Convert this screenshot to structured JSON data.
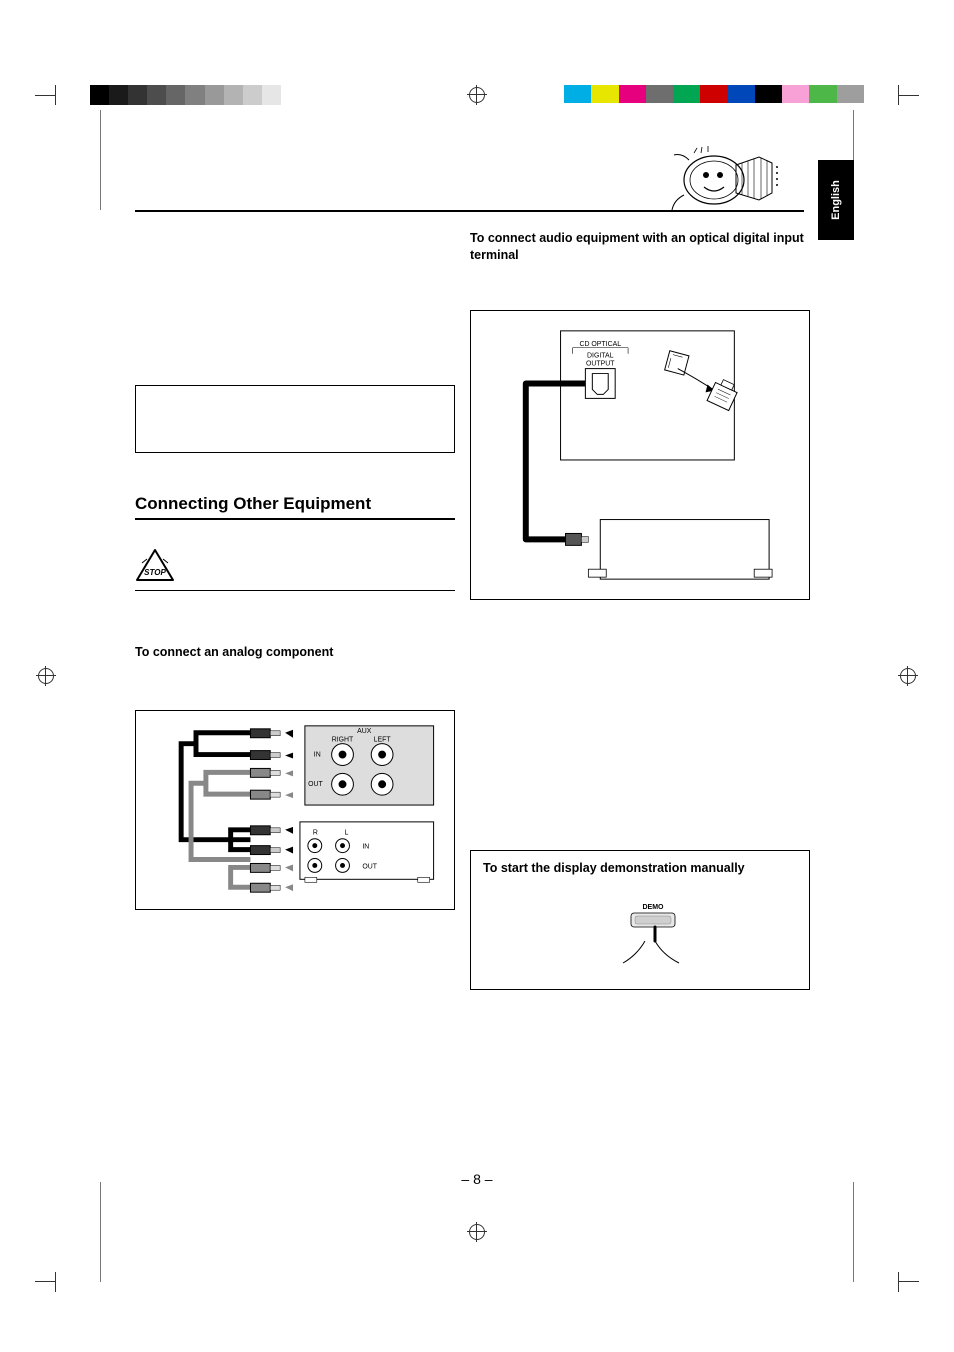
{
  "language_tab": "English",
  "page_number": "– 8 –",
  "gray_bar_colors": [
    "#000000",
    "#1a1a1a",
    "#333333",
    "#4d4d4d",
    "#666666",
    "#808080",
    "#999999",
    "#b3b3b3",
    "#cccccc",
    "#e6e6e6",
    "#ffffff"
  ],
  "color_bar_colors": [
    "#00aee6",
    "#e6e600",
    "#e6007e",
    "#6e6e6e",
    "#00a651",
    "#cf0000",
    "#0047ba",
    "#000000",
    "#f7a1d6",
    "#4db848",
    "#9e9e9e"
  ],
  "right_col": {
    "heading": "To connect audio equipment with an optical digital input terminal",
    "optical_labels": {
      "cd_optical": "CD OPTICAL",
      "digital": "DIGITAL",
      "output": "OUTPUT"
    }
  },
  "left_col": {
    "section_title": "Connecting Other Equipment",
    "analog_heading": "To connect an analog component",
    "analog_labels": {
      "aux": "AUX",
      "right": "RIGHT",
      "left": "LEFT",
      "in": "IN",
      "out": "OUT",
      "r": "R",
      "l": "L",
      "in2": "IN",
      "out2": "OUT"
    }
  },
  "demo_box": {
    "heading": "To start the display demonstration manually",
    "button": "DEMO"
  },
  "stop_label": "STOP"
}
